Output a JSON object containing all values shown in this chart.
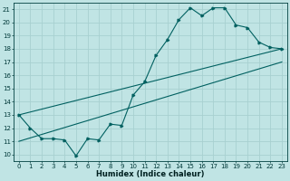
{
  "xlabel": "Humidex (Indice chaleur)",
  "bg_color": "#c0e4e4",
  "grid_color": "#a8d0d0",
  "line_color": "#006060",
  "xlim": [
    0,
    23
  ],
  "ylim": [
    10,
    21
  ],
  "xtick_vals": [
    0,
    1,
    2,
    3,
    4,
    5,
    6,
    7,
    8,
    9,
    10,
    11,
    12,
    13,
    14,
    15,
    16,
    17,
    18,
    19,
    20,
    21,
    22,
    23
  ],
  "ytick_vals": [
    10,
    11,
    12,
    13,
    14,
    15,
    16,
    17,
    18,
    19,
    20,
    21
  ],
  "line1_x": [
    0,
    1,
    2,
    3,
    4,
    5,
    6,
    7,
    8,
    9,
    10,
    11,
    12,
    13,
    14,
    15,
    16,
    17,
    18,
    19,
    20,
    21,
    22,
    23
  ],
  "line1_y": [
    13.0,
    12.0,
    11.2,
    11.2,
    11.1,
    9.9,
    11.2,
    11.1,
    12.3,
    12.2,
    14.5,
    15.5,
    17.5,
    18.7,
    20.2,
    21.1,
    20.5,
    21.1,
    21.1,
    19.8,
    19.6,
    18.5,
    18.1,
    18.0
  ],
  "line2_x": [
    0,
    23
  ],
  "line2_y": [
    13.0,
    18.0
  ],
  "line3_x": [
    0,
    23
  ],
  "line3_y": [
    11.0,
    17.0
  ],
  "tick_fontsize": 5,
  "xlabel_fontsize": 6
}
